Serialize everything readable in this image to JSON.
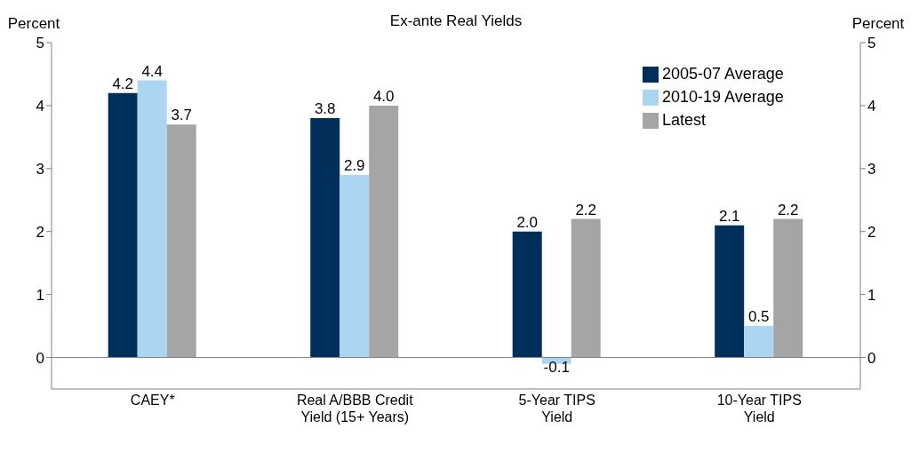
{
  "chart_data": {
    "type": "bar",
    "title": "Ex-ante Real Yields",
    "ylabel": "Percent",
    "y2label": "Percent",
    "categories": [
      "CAEY*",
      "Real A/BBB Credit\nYield (15+ Years)",
      "5-Year TIPS\nYield",
      "10-Year TIPS\nYield"
    ],
    "series": [
      {
        "name": "2005-07 Average",
        "color": "#00305a",
        "values": [
          4.2,
          3.8,
          2.0,
          2.1
        ],
        "value_labels": [
          "4.2",
          "3.8",
          "2.0",
          "2.1"
        ]
      },
      {
        "name": "2010-19 Average",
        "color": "#abd5f1",
        "values": [
          4.4,
          2.9,
          -0.1,
          0.5
        ],
        "value_labels": [
          "4.4",
          "2.9",
          "-0.1",
          "0.5"
        ]
      },
      {
        "name": "Latest",
        "color": "#a5a5a5",
        "values": [
          3.7,
          4.0,
          2.2,
          2.2
        ],
        "value_labels": [
          "3.7",
          "4.0",
          "2.2",
          "2.2"
        ]
      }
    ],
    "ylim": [
      -0.5,
      5
    ],
    "yticks": [
      0,
      1,
      2,
      3,
      4,
      5
    ],
    "y2lim": [
      -0.5,
      5
    ],
    "y2ticks": [
      0,
      1,
      2,
      3,
      4,
      5
    ],
    "ref_lines": [
      {
        "axis": "y",
        "value": 0,
        "color": "#808080"
      }
    ],
    "legend": "top right",
    "grid": false
  }
}
